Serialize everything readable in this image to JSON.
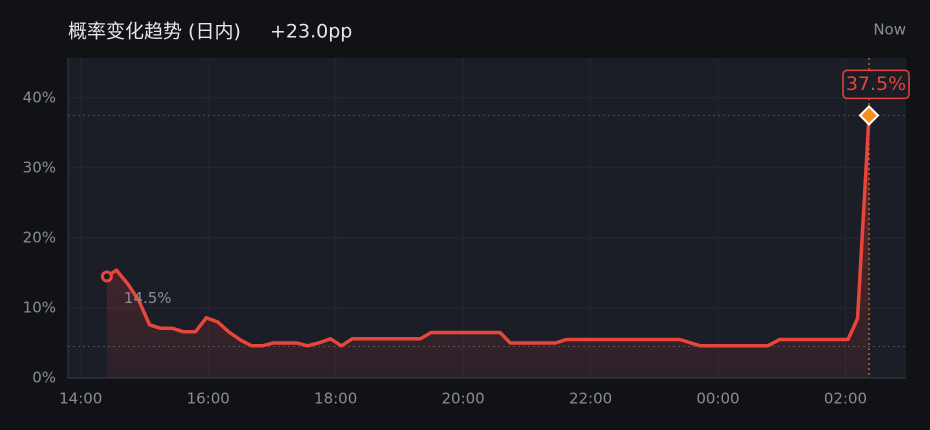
{
  "chart_data": {
    "type": "line",
    "title": "概率变化趋势 (日内)",
    "change": "+23.0pp",
    "now_label": "Now",
    "x": [
      14.41,
      14.56,
      14.74,
      14.91,
      15.08,
      15.25,
      15.44,
      15.61,
      15.8,
      15.97,
      16.15,
      16.32,
      16.51,
      16.68,
      16.85,
      17.02,
      17.2,
      17.39,
      17.56,
      17.73,
      17.92,
      18.09,
      18.26,
      19.33,
      19.5,
      20.58,
      20.74,
      21.45,
      21.62,
      23.4,
      23.72,
      24.78,
      24.97,
      26.04,
      26.19,
      26.37
    ],
    "values": [
      14.5,
      15.4,
      13.4,
      11.1,
      7.6,
      7.1,
      7.1,
      6.6,
      6.6,
      8.6,
      8.0,
      6.6,
      5.4,
      4.6,
      4.6,
      5.0,
      5.0,
      5.0,
      4.6,
      5.0,
      5.6,
      4.6,
      5.6,
      5.6,
      6.5,
      6.5,
      5.0,
      5.0,
      5.5,
      5.5,
      4.6,
      4.6,
      5.5,
      5.5,
      8.5,
      37.5
    ],
    "value_labels": [
      "14.5%",
      null,
      null,
      null,
      null,
      null,
      null,
      null,
      null,
      null,
      null,
      null,
      null,
      null,
      null,
      null,
      null,
      null,
      null,
      null,
      null,
      null,
      null,
      null,
      null,
      null,
      null,
      null,
      null,
      null,
      null,
      null,
      null,
      null,
      null,
      "37.5%"
    ],
    "color": "#e8453c",
    "end_marker_color": "#f5901e",
    "reference_lines": [
      37.5,
      4.5
    ],
    "xlim": [
      13.8,
      26.95
    ],
    "xticks": [
      {
        "value": 14,
        "label": "14:00"
      },
      {
        "value": 16,
        "label": "16:00"
      },
      {
        "value": 18,
        "label": "18:00"
      },
      {
        "value": 20,
        "label": "20:00"
      },
      {
        "value": 22,
        "label": "22:00"
      },
      {
        "value": 24,
        "label": "00:00"
      },
      {
        "value": 26,
        "label": "02:00"
      }
    ],
    "ylim": [
      0,
      45.7
    ],
    "yticks": [
      {
        "value": 0,
        "label": "0%"
      },
      {
        "value": 10,
        "label": "10%"
      },
      {
        "value": 20,
        "label": "20%"
      },
      {
        "value": 30,
        "label": "30%"
      },
      {
        "value": 40,
        "label": "40%"
      }
    ],
    "grid": true
  }
}
